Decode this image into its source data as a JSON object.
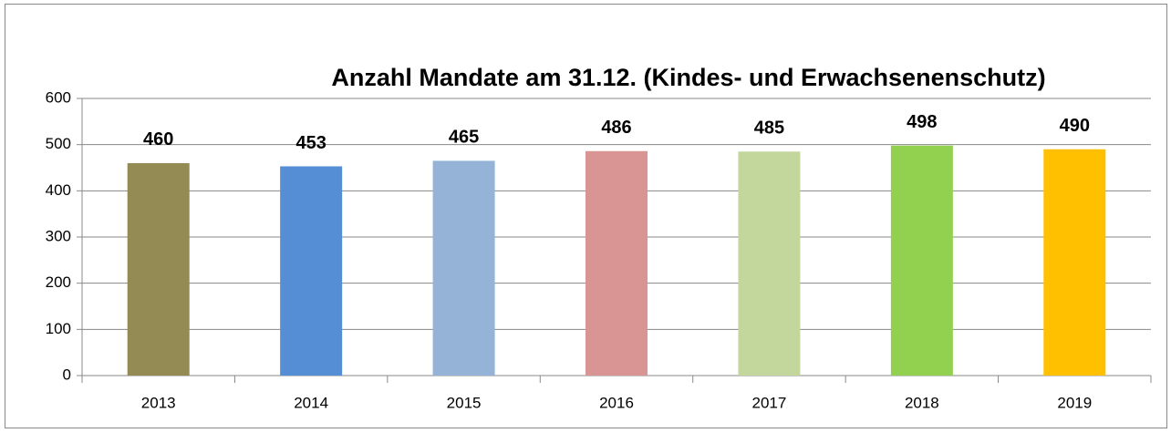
{
  "chart_data": {
    "type": "bar",
    "title": "Anzahl Mandate am 31.12. (Kindes- und Erwachsenenschutz)",
    "categories": [
      "2013",
      "2014",
      "2015",
      "2016",
      "2017",
      "2018",
      "2019"
    ],
    "values": [
      460,
      453,
      465,
      486,
      485,
      498,
      490
    ],
    "colors": [
      "#948a54",
      "#558ed5",
      "#95b3d7",
      "#d99594",
      "#c3d69b",
      "#92d050",
      "#ffc000"
    ],
    "ylim": [
      0,
      600
    ],
    "yticks": [
      0,
      100,
      200,
      300,
      400,
      500,
      600
    ],
    "grid": true
  }
}
